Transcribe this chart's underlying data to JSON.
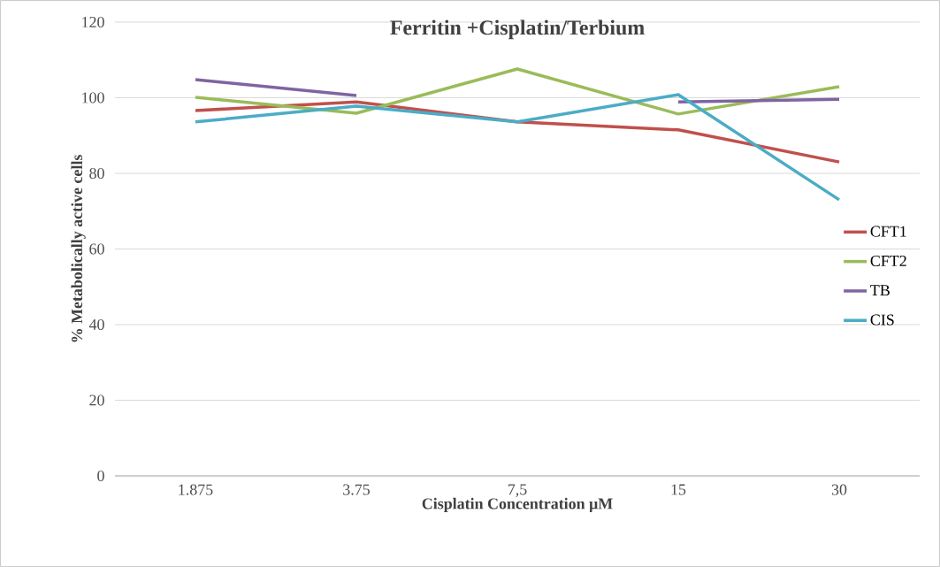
{
  "chart_data": {
    "type": "line",
    "title": "Ferritin +Cisplatin/Terbium",
    "xlabel": "Cisplatin Concentration μM",
    "ylabel": "% Metabolically active cells",
    "categories": [
      "1.875",
      "3.75",
      "7,5",
      "15",
      "30"
    ],
    "series": [
      {
        "name": "CFT1",
        "color": "#c0504d",
        "values": [
          96.6,
          98.9,
          93.6,
          91.5,
          83.0
        ]
      },
      {
        "name": "CFT2",
        "color": "#9bbb59",
        "values": [
          100.1,
          95.9,
          107.6,
          95.7,
          102.9
        ]
      },
      {
        "name": "TB",
        "color": "#8064a2",
        "values": [
          104.8,
          100.6,
          null,
          98.9,
          99.6
        ]
      },
      {
        "name": "CIS",
        "color": "#4bacc6",
        "values": [
          93.6,
          97.8,
          93.6,
          100.8,
          73.0
        ]
      }
    ],
    "ylim": [
      0,
      120
    ],
    "yticks": [
      0,
      20,
      40,
      60,
      80,
      100,
      120
    ],
    "grid": "y",
    "legend": "right",
    "marker": "none",
    "line_style": "solid"
  }
}
